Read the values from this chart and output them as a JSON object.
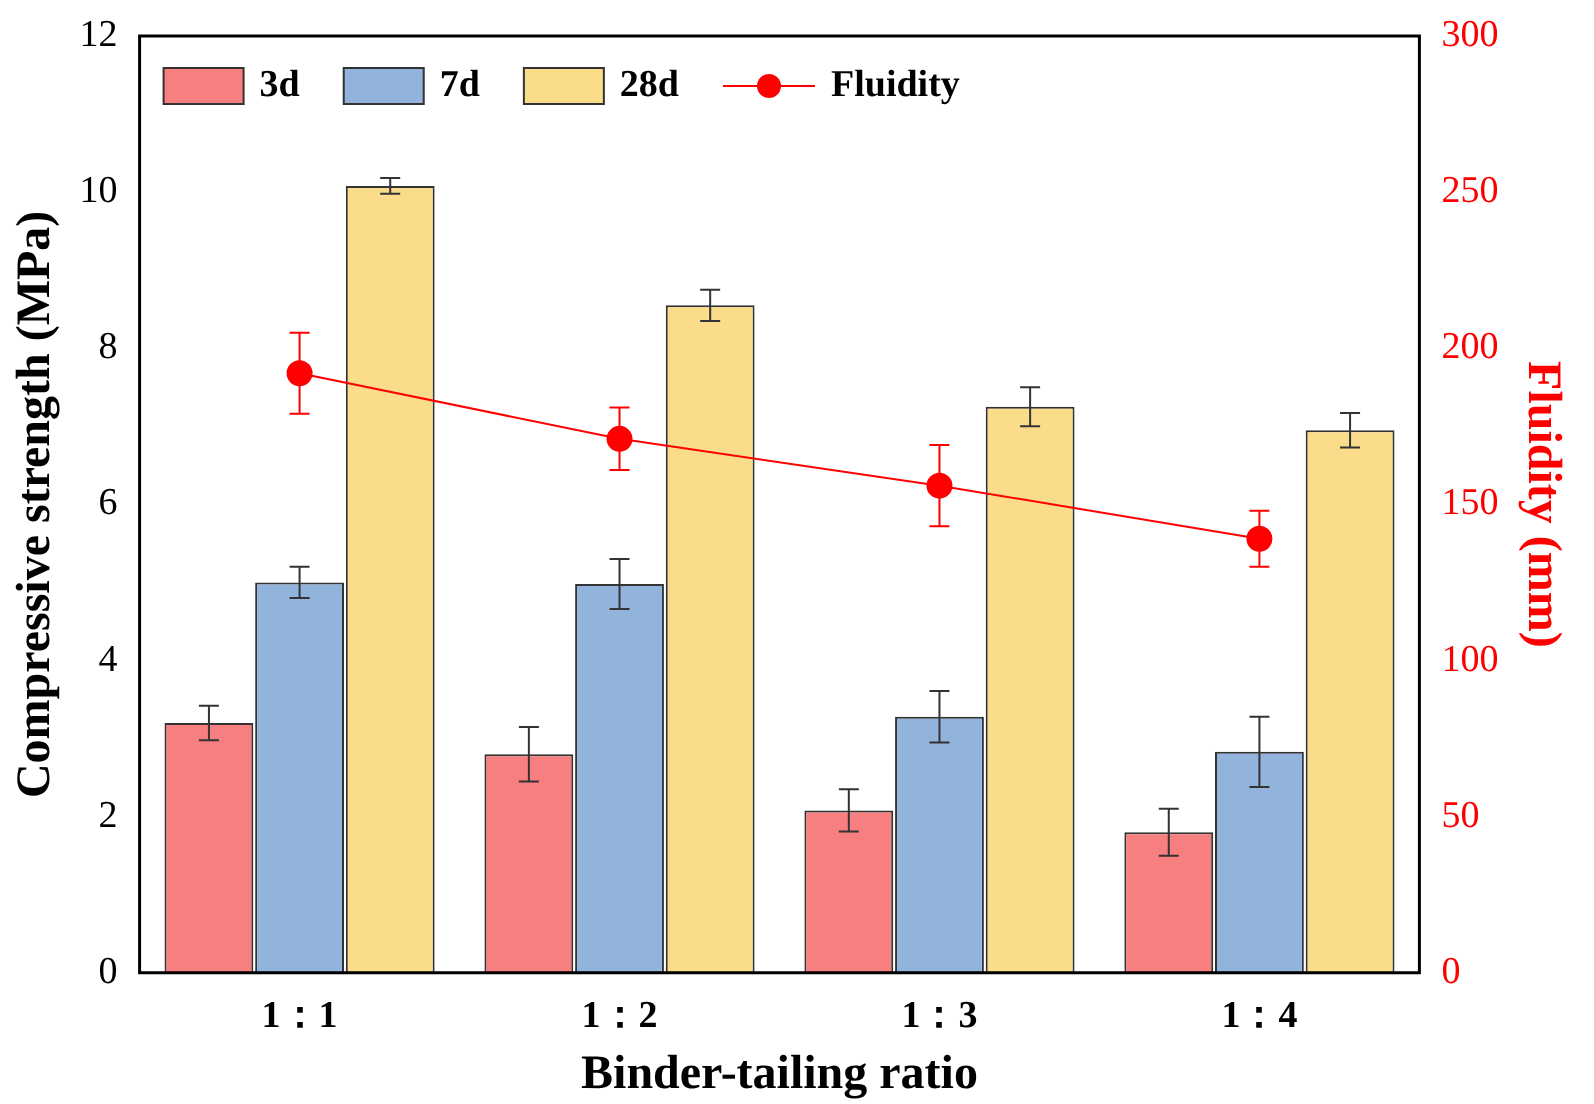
{
  "chart_data": {
    "type": "bar",
    "xlabel": "Binder-tailing ratio",
    "ylabel": "Compressive strength (MPa)",
    "y2label": "Fluidity (mm)",
    "categories": [
      "1：1",
      "1：2",
      "1：3",
      "1：4"
    ],
    "series": [
      {
        "name": "3d",
        "color": "#f77f7f",
        "values": [
          3.2,
          2.8,
          2.08,
          1.8
        ],
        "errors": [
          0.22,
          0.35,
          0.27,
          0.3
        ]
      },
      {
        "name": "7d",
        "color": "#92b4dc",
        "values": [
          5.0,
          4.98,
          3.28,
          2.83
        ],
        "errors": [
          0.2,
          0.32,
          0.33,
          0.45
        ]
      },
      {
        "name": "28d",
        "color": "#fbdc8a",
        "values": [
          10.08,
          8.55,
          7.25,
          6.95
        ],
        "errors": [
          0.1,
          0.2,
          0.25,
          0.22
        ]
      },
      {
        "name": "Fluidity",
        "type": "line",
        "axis": "y2",
        "color": "#ff0000",
        "values": [
          192,
          171,
          156,
          139
        ],
        "errors": [
          13,
          10,
          13,
          9
        ]
      }
    ],
    "ylim": [
      0,
      12
    ],
    "yticks": [
      0,
      2,
      4,
      6,
      8,
      10,
      12
    ],
    "y2lim": [
      0,
      300
    ],
    "y2ticks": [
      0,
      50,
      100,
      150,
      200,
      250,
      300
    ],
    "legend": "top left",
    "grid": false,
    "marker": "circle"
  }
}
